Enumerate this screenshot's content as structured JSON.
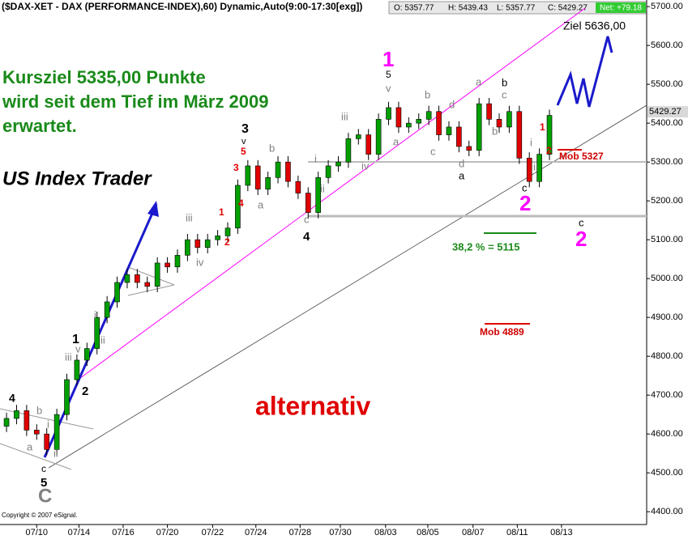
{
  "chart_data": {
    "type": "candlestick",
    "title": "($DAX-XET - DAX (PERFORMANCE-INDEX),60) Dynamic,Auto(9:00-17:30[exg])",
    "stats": [
      "O: 5357.77",
      "H: 5439.43",
      "L: 5357.77",
      "C: 5429.27",
      "Net: +79.18"
    ],
    "copyright": "Copyright © 2007 eSignal.",
    "last_value": 5429.27,
    "up_color": "#00a000",
    "down_color": "#e00000",
    "open": [
      4620,
      4640,
      4660,
      4610,
      4600,
      4560,
      4650,
      4740,
      4790,
      4820,
      4900,
      4940,
      4990,
      5010,
      4990,
      4980,
      5040,
      5030,
      5060,
      5100,
      5080,
      5100,
      5110,
      5130,
      5240,
      5290,
      5230,
      5260,
      5300,
      5250,
      5220,
      5170,
      5260,
      5290,
      5300,
      5360,
      5370,
      5320,
      5410,
      5440,
      5390,
      5400,
      5410,
      5430,
      5370,
      5390,
      5340,
      5330,
      5450,
      5410,
      5390,
      5430,
      5310,
      5250,
      5320
    ],
    "high": [
      4655,
      4675,
      4675,
      4625,
      4615,
      4665,
      4755,
      4805,
      4835,
      4915,
      4955,
      5005,
      5025,
      5025,
      5005,
      5055,
      5055,
      5075,
      5115,
      5115,
      5115,
      5125,
      5145,
      5255,
      5305,
      5305,
      5275,
      5315,
      5315,
      5265,
      5235,
      5275,
      5305,
      5315,
      5375,
      5385,
      5385,
      5425,
      5455,
      5455,
      5415,
      5425,
      5445,
      5445,
      5405,
      5405,
      5355,
      5465,
      5465,
      5425,
      5445,
      5445,
      5325,
      5335,
      5435
    ],
    "low": [
      4605,
      4625,
      4595,
      4585,
      4545,
      4545,
      4635,
      4725,
      4775,
      4805,
      4885,
      4925,
      4975,
      4975,
      4965,
      4965,
      5015,
      5015,
      5045,
      5065,
      5065,
      5085,
      5095,
      5115,
      5225,
      5215,
      5215,
      5245,
      5235,
      5205,
      5155,
      5155,
      5245,
      5275,
      5285,
      5345,
      5305,
      5305,
      5395,
      5375,
      5375,
      5385,
      5395,
      5355,
      5355,
      5325,
      5315,
      5315,
      5395,
      5375,
      5375,
      5295,
      5235,
      5235,
      5305
    ],
    "close": [
      4640,
      4660,
      4610,
      4600,
      4560,
      4650,
      4740,
      4790,
      4820,
      4900,
      4940,
      4990,
      5010,
      4990,
      4980,
      5040,
      5030,
      5060,
      5100,
      5080,
      5100,
      5110,
      5130,
      5240,
      5290,
      5230,
      5260,
      5300,
      5250,
      5220,
      5170,
      5260,
      5290,
      5300,
      5360,
      5370,
      5320,
      5410,
      5440,
      5390,
      5400,
      5410,
      5430,
      5370,
      5390,
      5340,
      5330,
      5450,
      5410,
      5390,
      5430,
      5310,
      5250,
      5320,
      5420
    ],
    "xlim": [
      -0.65,
      63.67
    ],
    "xticks": [
      {
        "value": 3,
        "label": "07/10"
      },
      {
        "value": 7.2,
        "label": "07/14"
      },
      {
        "value": 11.6,
        "label": "07/16"
      },
      {
        "value": 16,
        "label": "07/20"
      },
      {
        "value": 20.5,
        "label": "07/22"
      },
      {
        "value": 24.8,
        "label": "07/24"
      },
      {
        "value": 29.2,
        "label": "07/28"
      },
      {
        "value": 33.2,
        "label": "07/30"
      },
      {
        "value": 37.7,
        "label": "08/03"
      },
      {
        "value": 41.9,
        "label": "08/05"
      },
      {
        "value": 46.4,
        "label": "08/07"
      },
      {
        "value": 50.8,
        "label": "08/11"
      },
      {
        "value": 55.2,
        "label": "08/13"
      }
    ],
    "ylim": [
      4367,
      5717
    ],
    "yticks": [
      {
        "value": 4400,
        "label": "4400.00"
      },
      {
        "value": 4500,
        "label": "4500.00"
      },
      {
        "value": 4600,
        "label": "4600.00"
      },
      {
        "value": 4700,
        "label": "4700.00"
      },
      {
        "value": 4800,
        "label": "4800.00"
      },
      {
        "value": 4900,
        "label": "4900.00"
      },
      {
        "value": 5000,
        "label": "5000.00"
      },
      {
        "value": 5100,
        "label": "5100.00"
      },
      {
        "value": 5200,
        "label": "5200.00"
      },
      {
        "value": 5300,
        "label": "5300.00"
      },
      {
        "value": 5400,
        "label": "5400.00"
      },
      {
        "value": 5500,
        "label": "5500.00"
      },
      {
        "value": 5600,
        "label": "5600.00"
      },
      {
        "value": 5700,
        "label": "5700.00"
      }
    ],
    "annotations": [
      {
        "text": "Kursziel 5335,00 Punkte",
        "color": "#1a8a1a"
      },
      {
        "text": "wird seit dem Tief im März 2009",
        "color": "#1a8a1a"
      },
      {
        "text": "erwartet.",
        "color": "#1a8a1a"
      },
      {
        "text": "US Index Trader",
        "color": "#000000"
      },
      {
        "text": "alternativ",
        "color": "#e00000"
      },
      {
        "text": "Ziel 5636,00",
        "color": "#000000"
      },
      {
        "text": "38,2 % = 5115",
        "color": "#1a8a1a"
      },
      {
        "text": "Mob 5327",
        "color": "#d00000"
      },
      {
        "text": "Mob 4889",
        "color": "#d00000"
      },
      {
        "text": "1",
        "color": "#ff00ff"
      },
      {
        "text": "2",
        "color": "#ff00ff"
      },
      {
        "text": "2",
        "color": "#ff00ff"
      },
      {
        "text": "C",
        "color": "#808080"
      },
      {
        "text": "5",
        "color": "#000000"
      },
      {
        "text": "c",
        "color": "#000000"
      },
      {
        "text": "4",
        "color": "#000000"
      },
      {
        "text": "1",
        "color": "#000000"
      },
      {
        "text": "2",
        "color": "#000000"
      },
      {
        "text": "3",
        "color": "#000000"
      },
      {
        "text": "4",
        "color": "#000000"
      },
      {
        "text": "5",
        "color": "#000000"
      },
      {
        "text": "c",
        "color": "#000000"
      },
      {
        "text": "a",
        "color": "#000000"
      },
      {
        "text": "b",
        "color": "#000000"
      },
      {
        "text": "c",
        "color": "#000000"
      },
      {
        "text": "a",
        "color": "#808080"
      },
      {
        "text": "b",
        "color": "#808080"
      },
      {
        "text": "i",
        "color": "#808080"
      },
      {
        "text": "ii",
        "color": "#808080"
      },
      {
        "text": "iii",
        "color": "#808080"
      },
      {
        "text": "v",
        "color": "#808080"
      },
      {
        "text": "i",
        "color": "#808080"
      },
      {
        "text": "ii",
        "color": "#808080"
      },
      {
        "text": "iii",
        "color": "#808080"
      },
      {
        "text": "iv",
        "color": "#808080"
      },
      {
        "text": "a",
        "color": "#808080"
      },
      {
        "text": "b",
        "color": "#808080"
      },
      {
        "text": "c",
        "color": "#808080"
      },
      {
        "text": "i",
        "color": "#808080"
      },
      {
        "text": "ii",
        "color": "#808080"
      },
      {
        "text": "iii",
        "color": "#808080"
      },
      {
        "text": "iv",
        "color": "#808080"
      },
      {
        "text": "v",
        "color": "#808080"
      },
      {
        "text": "a",
        "color": "#808080"
      },
      {
        "text": "b",
        "color": "#808080"
      },
      {
        "text": "c",
        "color": "#808080"
      },
      {
        "text": "d",
        "color": "#808080"
      },
      {
        "text": "d",
        "color": "#808080"
      },
      {
        "text": "a",
        "color": "#808080"
      },
      {
        "text": "c",
        "color": "#808080"
      },
      {
        "text": "b",
        "color": "#808080"
      },
      {
        "text": "i",
        "color": "#808080"
      },
      {
        "text": "ii",
        "color": "#808080"
      },
      {
        "text": "5",
        "color": "#e00000"
      },
      {
        "text": "3",
        "color": "#e00000"
      },
      {
        "text": "4",
        "color": "#e00000"
      },
      {
        "text": "1",
        "color": "#e00000"
      },
      {
        "text": "2",
        "color": "#e00000"
      },
      {
        "text": "1",
        "color": "#e00000"
      },
      {
        "text": "2",
        "color": "#e00000"
      },
      {
        "text": "v",
        "color": "#000000"
      }
    ]
  }
}
